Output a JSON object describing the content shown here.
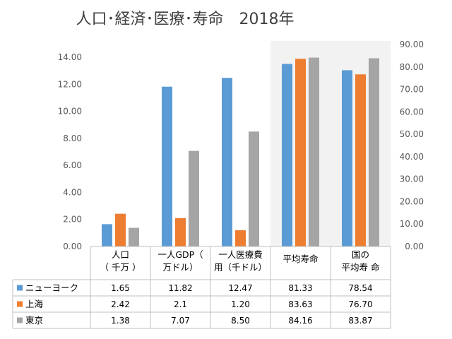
{
  "chart_data": {
    "type": "bar",
    "title": "人口･経済･医療･寿命　2018年",
    "categories": [
      [
        "人口",
        "（ 千万 ）"
      ],
      [
        "一人GDP（",
        "万ドル）"
      ],
      [
        "一人医療費",
        "用（千ドル）"
      ],
      [
        "平均寿命"
      ],
      [
        "国の",
        "平均寿 命"
      ]
    ],
    "y_axis": "left",
    "axis_assignment": [
      "left",
      "left",
      "left",
      "right",
      "right"
    ],
    "series": [
      {
        "name": "ニューヨーク",
        "color": "#5B9BD5",
        "values": [
          1.65,
          11.82,
          12.47,
          81.33,
          78.54
        ],
        "labels": [
          "1.65",
          "11.82",
          "12.47",
          "81.33",
          "78.54"
        ]
      },
      {
        "name": "上海",
        "color": "#ED7D31",
        "values": [
          2.42,
          2.1,
          1.2,
          83.63,
          76.7
        ],
        "labels": [
          "2.42",
          "2.1",
          "1.20",
          "83.63",
          "76.70"
        ]
      },
      {
        "name": "東京",
        "color": "#A5A5A5",
        "values": [
          1.38,
          7.07,
          8.5,
          84.16,
          83.87
        ],
        "labels": [
          "1.38",
          "7.07",
          "8.50",
          "84.16",
          "83.87"
        ]
      }
    ],
    "left_axis": {
      "ylim": [
        0,
        14
      ],
      "ticks": [
        "0.00",
        "2.00",
        "4.00",
        "6.00",
        "8.00",
        "10.00",
        "12.00",
        "14.00"
      ]
    },
    "right_axis": {
      "ylim": [
        0,
        90
      ],
      "ticks": [
        "0.00",
        "10.00",
        "20.00",
        "30.00",
        "40.00",
        "50.00",
        "60.00",
        "70.00",
        "80.00",
        "90.00"
      ]
    },
    "legend": "data-table",
    "grid": false,
    "plot_background_right": "#F2F2F2"
  }
}
